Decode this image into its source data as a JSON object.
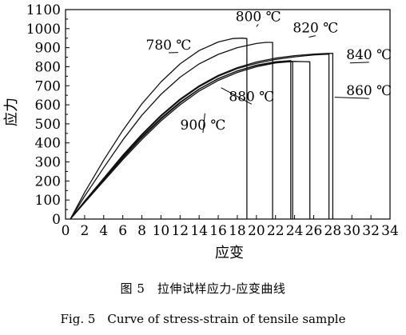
{
  "chart_data": {
    "type": "line",
    "xlabel": "应变",
    "ylabel": "应力",
    "xlim": [
      0,
      34
    ],
    "ylim": [
      0,
      1100
    ],
    "xticks": [
      0,
      2,
      4,
      6,
      8,
      10,
      12,
      14,
      16,
      18,
      20,
      22,
      24,
      26,
      28,
      30,
      32,
      34
    ],
    "yticks": [
      0,
      50,
      100,
      150,
      200,
      250,
      300,
      350,
      400,
      450,
      500,
      550,
      600,
      650,
      700,
      750,
      800,
      850,
      900,
      950,
      1000,
      1050,
      1100
    ],
    "grid": false,
    "series": [
      {
        "name": "780 ℃",
        "x": [
          0.5,
          2,
          4,
          6,
          8,
          10,
          12,
          14,
          16,
          17.5,
          18.5,
          19
        ],
        "y": [
          0,
          140,
          310,
          465,
          605,
          720,
          815,
          885,
          930,
          948,
          950,
          948
        ],
        "fracture_x": 19
      },
      {
        "name": "800 ℃",
        "x": [
          0.5,
          2,
          4,
          6,
          8,
          10,
          12,
          14,
          16,
          18,
          20,
          21,
          21.7
        ],
        "y": [
          0,
          120,
          270,
          415,
          545,
          655,
          745,
          815,
          865,
          900,
          922,
          928,
          928
        ],
        "fracture_x": 21.7
      },
      {
        "name": "820 ℃",
        "x": [
          0.5,
          2,
          4,
          6,
          8,
          10,
          12,
          14,
          16,
          18,
          20,
          22,
          24,
          26,
          27.5,
          28
        ],
        "y": [
          0,
          95,
          215,
          335,
          445,
          545,
          630,
          700,
          755,
          795,
          825,
          845,
          858,
          866,
          870,
          870
        ],
        "fracture_x": 28
      },
      {
        "name": "840 ℃",
        "x": [
          0.5,
          2,
          4,
          6,
          8,
          10,
          12,
          14,
          16,
          18,
          20,
          22,
          24,
          26,
          27.6
        ],
        "y": [
          0,
          92,
          212,
          330,
          440,
          540,
          625,
          695,
          750,
          790,
          818,
          838,
          852,
          862,
          866
        ],
        "fracture_x": 27.6
      },
      {
        "name": "860 ℃",
        "x": [
          0.5,
          2,
          4,
          6,
          8,
          10,
          12,
          14,
          16,
          18,
          20,
          22,
          24,
          25.6
        ],
        "y": [
          0,
          90,
          208,
          325,
          432,
          530,
          614,
          683,
          737,
          778,
          806,
          822,
          828,
          826
        ],
        "fracture_x": 25.6
      },
      {
        "name": "880 ℃",
        "x": [
          0.5,
          2,
          4,
          6,
          8,
          10,
          12,
          14,
          16,
          18,
          20,
          22,
          23.6
        ],
        "y": [
          0,
          88,
          205,
          320,
          428,
          525,
          610,
          682,
          738,
          778,
          808,
          826,
          832
        ],
        "fracture_x": 23.6
      },
      {
        "name": "900 ℃",
        "x": [
          0.5,
          2,
          4,
          6,
          8,
          10,
          12,
          14,
          16,
          18,
          20,
          22,
          23.8
        ],
        "y": [
          0,
          86,
          200,
          312,
          418,
          515,
          600,
          672,
          728,
          770,
          800,
          820,
          828
        ],
        "fracture_x": 23.8
      }
    ],
    "annotations": [
      {
        "text": "780 ℃",
        "x": 10.8,
        "y": 890,
        "tx": 11.8,
        "ty": 875
      },
      {
        "text": "800 ℃",
        "x": 20.2,
        "y": 1040,
        "tx": 20.0,
        "ty": 1010
      },
      {
        "text": "820 ℃",
        "x": 26.2,
        "y": 980,
        "tx": 25.5,
        "ty": 955
      },
      {
        "text": "840 ℃",
        "x": 31.8,
        "y": 840,
        "tx": 29.8,
        "ty": 820
      },
      {
        "text": "860 ℃",
        "x": 31.8,
        "y": 650,
        "tx": 28.2,
        "ty": 640
      },
      {
        "text": "880 ℃",
        "x": 19.5,
        "y": 620,
        "tx": 16.3,
        "ty": 690
      },
      {
        "text": "900 ℃",
        "x": 14.4,
        "y": 470,
        "tx": 14.6,
        "ty": 555
      }
    ]
  },
  "caption": {
    "chinese": "图 5　拉伸试样应力-应变曲线",
    "english": "Fig. 5　Curve of stress-strain of tensile sample"
  }
}
